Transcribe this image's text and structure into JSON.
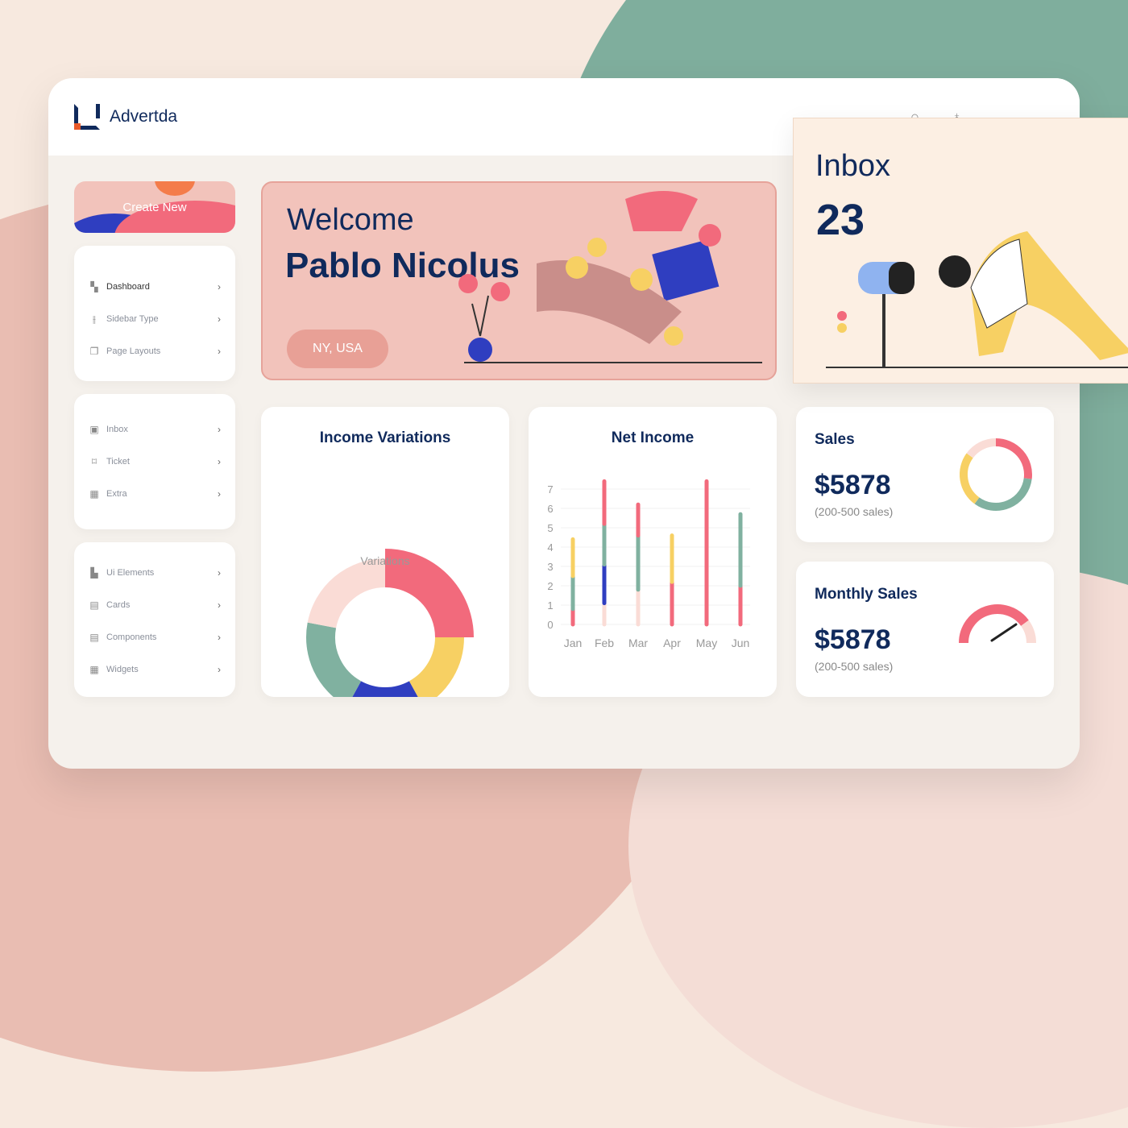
{
  "brand": "Advertda",
  "create_label": "Create New",
  "nav_groups": [
    [
      {
        "label": "Dashboard",
        "icon": "dashboard-icon"
      },
      {
        "label": "Sidebar Type",
        "icon": "sliders-icon"
      },
      {
        "label": "Page Layouts",
        "icon": "pages-icon"
      }
    ],
    [
      {
        "label": "Inbox",
        "icon": "inbox-icon"
      },
      {
        "label": "Ticket",
        "icon": "bookmark-icon"
      },
      {
        "label": "Extra",
        "icon": "grid-icon"
      }
    ],
    [
      {
        "label": "Ui Elements",
        "icon": "widgets-icon"
      },
      {
        "label": "Cards",
        "icon": "cards-icon"
      },
      {
        "label": "Components",
        "icon": "components-icon"
      },
      {
        "label": "Widgets",
        "icon": "grid-icon"
      }
    ]
  ],
  "welcome": {
    "greeting": "Welcome",
    "name": "Pablo Nicolus",
    "location": "NY, USA"
  },
  "inbox": {
    "title": "Inbox",
    "count": "23"
  },
  "income": {
    "title": "Income Variations",
    "center": "Variations"
  },
  "net_income": {
    "title": "Net Income"
  },
  "sales": {
    "title": "Sales",
    "value": "$5878",
    "sub": "(200-500 sales)"
  },
  "monthly": {
    "title": "Monthly Sales",
    "value": "$5878",
    "sub": "(200-500 sales)"
  },
  "colors": {
    "red": "#f26a7c",
    "yellow": "#f7d063",
    "blue": "#2f3ec0",
    "green": "#80b1a0",
    "pink": "#fadcd6",
    "navy": "#102a5c"
  },
  "chart_data": [
    {
      "type": "pie",
      "title": "Income Variations",
      "segments": [
        {
          "color": "red",
          "value": 25
        },
        {
          "color": "yellow",
          "value": 17
        },
        {
          "color": "blue",
          "value": 16
        },
        {
          "color": "green",
          "value": 20
        },
        {
          "color": "pink",
          "value": 22
        }
      ]
    },
    {
      "type": "bar",
      "title": "Net Income",
      "categories": [
        "Jan",
        "Feb",
        "Mar",
        "Apr",
        "May",
        "Jun"
      ],
      "ylim": [
        0,
        7
      ],
      "yticks": [
        0,
        1,
        2,
        3,
        4,
        5,
        6,
        7
      ],
      "stacks": [
        [
          {
            "color": "red",
            "value": 0.8
          },
          {
            "color": "green",
            "value": 1.7
          },
          {
            "color": "yellow",
            "value": 1.9
          }
        ],
        [
          {
            "color": "pink",
            "value": 1.1
          },
          {
            "color": "blue",
            "value": 2.0
          },
          {
            "color": "green",
            "value": 2.1
          },
          {
            "color": "red",
            "value": 2.2
          }
        ],
        [
          {
            "color": "pink",
            "value": 1.8
          },
          {
            "color": "green",
            "value": 2.8
          },
          {
            "color": "red",
            "value": 1.6
          }
        ],
        [
          {
            "color": "red",
            "value": 2.2
          },
          {
            "color": "yellow",
            "value": 2.4
          }
        ],
        [
          {
            "color": "red",
            "value": 7.4
          }
        ],
        [
          {
            "color": "red",
            "value": 2.0
          },
          {
            "color": "green",
            "value": 3.7
          }
        ]
      ]
    },
    {
      "type": "pie",
      "title": "Sales",
      "segments": [
        {
          "color": "red",
          "value": 27
        },
        {
          "color": "green",
          "value": 33
        },
        {
          "color": "yellow",
          "value": 25
        },
        {
          "color": "pink",
          "value": 15
        }
      ]
    },
    {
      "type": "gauge",
      "title": "Monthly Sales",
      "value": 0.8
    }
  ]
}
